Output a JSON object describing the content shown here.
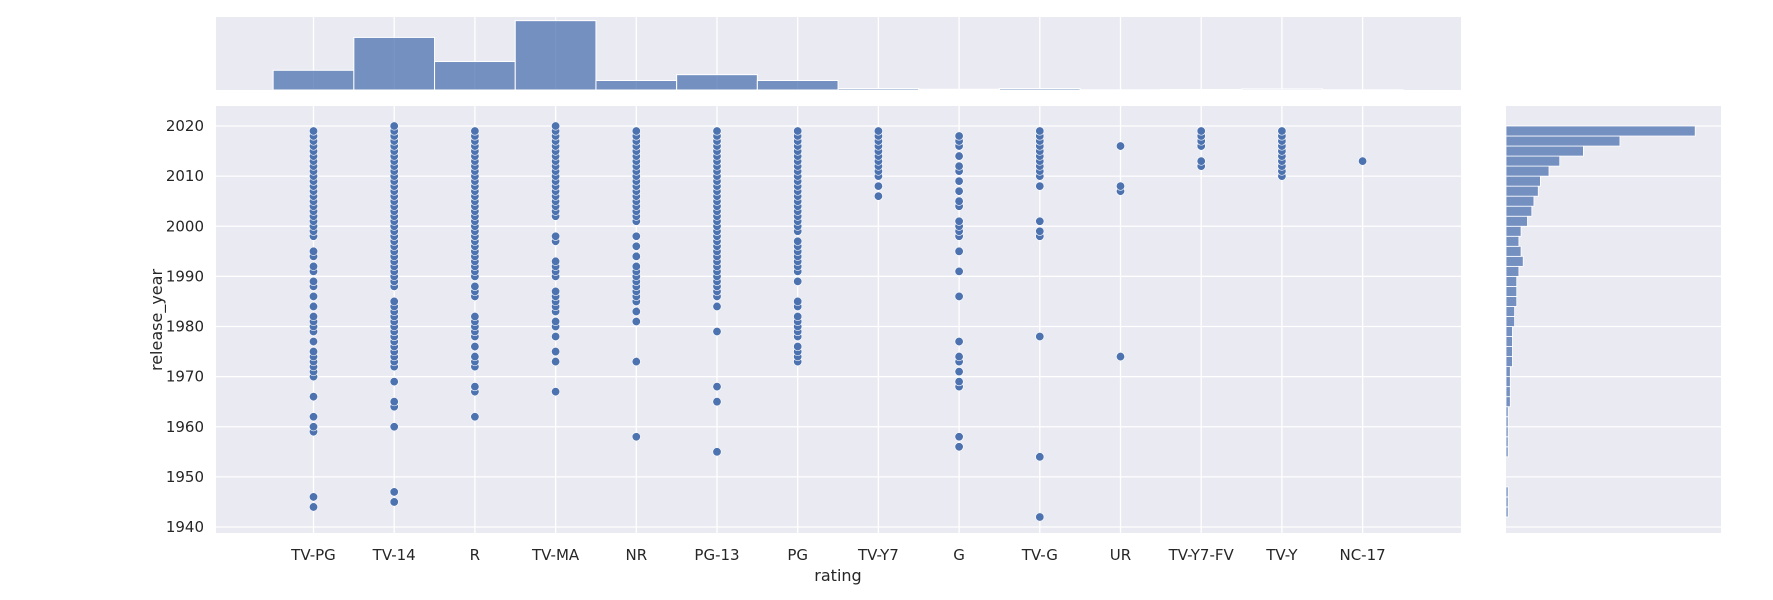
{
  "chart_data": {
    "type": "scatter",
    "kind": "jointplot",
    "xlabel": "rating",
    "ylabel": "release_year",
    "categories": [
      "TV-PG",
      "TV-14",
      "R",
      "TV-MA",
      "NR",
      "PG-13",
      "PG",
      "TV-Y7",
      "G",
      "TV-G",
      "UR",
      "TV-Y7-FV",
      "TV-Y",
      "NC-17"
    ],
    "ylim": [
      1938,
      2022
    ],
    "yticks": [
      1940,
      1950,
      1960,
      1970,
      1980,
      1990,
      2000,
      2010,
      2020
    ],
    "grid": true,
    "style": "seaborn darkgrid",
    "colors": {
      "marker": "#4c72b0",
      "background": "#eaeaf2",
      "grid": "#ffffff",
      "hist": "#4c72b0"
    },
    "points": {
      "TV-PG": [
        1944,
        1946,
        1959,
        1960,
        1962,
        1966,
        1970,
        1971,
        1972,
        1973,
        1974,
        1975,
        1977,
        1979,
        1980,
        1981,
        1982,
        1984,
        1986,
        1988,
        1989,
        1991,
        1992,
        1994,
        1995,
        1998,
        1999,
        2000,
        2001,
        2002,
        2003,
        2004,
        2005,
        2006,
        2007,
        2008,
        2009,
        2010,
        2011,
        2012,
        2013,
        2014,
        2015,
        2016,
        2017,
        2018,
        2019
      ],
      "TV-14": [
        1945,
        1947,
        1960,
        1964,
        1965,
        1969,
        1972,
        1973,
        1974,
        1975,
        1976,
        1977,
        1978,
        1979,
        1980,
        1981,
        1982,
        1983,
        1984,
        1985,
        1988,
        1989,
        1990,
        1991,
        1992,
        1993,
        1994,
        1995,
        1996,
        1997,
        1998,
        1999,
        2000,
        2001,
        2002,
        2003,
        2004,
        2005,
        2006,
        2007,
        2008,
        2009,
        2010,
        2011,
        2012,
        2013,
        2014,
        2015,
        2016,
        2017,
        2018,
        2019,
        2020
      ],
      "R": [
        1962,
        1967,
        1968,
        1972,
        1973,
        1974,
        1976,
        1978,
        1979,
        1980,
        1981,
        1982,
        1986,
        1987,
        1988,
        1990,
        1991,
        1992,
        1993,
        1994,
        1995,
        1996,
        1997,
        1998,
        1999,
        2000,
        2001,
        2002,
        2003,
        2004,
        2005,
        2006,
        2007,
        2008,
        2009,
        2010,
        2011,
        2012,
        2013,
        2014,
        2015,
        2016,
        2017,
        2018,
        2019
      ],
      "TV-MA": [
        1967,
        1973,
        1975,
        1978,
        1980,
        1981,
        1983,
        1984,
        1985,
        1986,
        1987,
        1990,
        1991,
        1992,
        1993,
        1997,
        1998,
        2002,
        2003,
        2004,
        2005,
        2006,
        2007,
        2008,
        2009,
        2010,
        2011,
        2012,
        2013,
        2014,
        2015,
        2016,
        2017,
        2018,
        2019,
        2020
      ],
      "NR": [
        1958,
        1973,
        1981,
        1983,
        1985,
        1986,
        1987,
        1988,
        1989,
        1990,
        1991,
        1992,
        1994,
        1996,
        1998,
        2001,
        2002,
        2003,
        2004,
        2005,
        2006,
        2007,
        2008,
        2009,
        2010,
        2011,
        2012,
        2013,
        2014,
        2015,
        2016,
        2017,
        2018,
        2019
      ],
      "PG-13": [
        1955,
        1965,
        1968,
        1979,
        1984,
        1986,
        1987,
        1988,
        1989,
        1990,
        1991,
        1992,
        1993,
        1994,
        1995,
        1996,
        1997,
        1998,
        1999,
        2000,
        2001,
        2002,
        2003,
        2004,
        2005,
        2006,
        2007,
        2008,
        2009,
        2010,
        2011,
        2012,
        2013,
        2014,
        2015,
        2016,
        2017,
        2018,
        2019
      ],
      "PG": [
        1973,
        1974,
        1975,
        1976,
        1978,
        1979,
        1980,
        1981,
        1982,
        1984,
        1985,
        1989,
        1991,
        1992,
        1993,
        1994,
        1995,
        1996,
        1997,
        1999,
        2000,
        2001,
        2002,
        2003,
        2004,
        2005,
        2006,
        2007,
        2008,
        2009,
        2010,
        2011,
        2012,
        2013,
        2014,
        2015,
        2016,
        2017,
        2018,
        2019
      ],
      "TV-Y7": [
        2006,
        2008,
        2010,
        2011,
        2012,
        2013,
        2014,
        2015,
        2016,
        2017,
        2018,
        2019
      ],
      "G": [
        1956,
        1958,
        1968,
        1969,
        1971,
        1973,
        1974,
        1977,
        1986,
        1991,
        1995,
        1998,
        1999,
        2000,
        2001,
        2004,
        2005,
        2007,
        2009,
        2011,
        2012,
        2014,
        2016,
        2017,
        2018
      ],
      "TV-G": [
        1942,
        1954,
        1978,
        1998,
        1999,
        2001,
        2008,
        2010,
        2011,
        2012,
        2013,
        2014,
        2015,
        2016,
        2017,
        2018,
        2019
      ],
      "UR": [
        1974,
        2007,
        2008,
        2016
      ],
      "TV-Y7-FV": [
        2012,
        2013,
        2016,
        2017,
        2018,
        2019
      ],
      "TV-Y": [
        2010,
        2011,
        2012,
        2013,
        2014,
        2015,
        2016,
        2017,
        2018,
        2019
      ],
      "NC-17": [
        2013
      ]
    },
    "x_histogram": {
      "counts": [
        0.27,
        0.72,
        0.39,
        0.95,
        0.13,
        0.21,
        0.13,
        0.02,
        0.01,
        0.02,
        0.003,
        0.007,
        0.015,
        0.003
      ]
    },
    "y_histogram": {
      "bins_start": [
        1942,
        1944,
        1946,
        1948,
        1950,
        1952,
        1954,
        1956,
        1958,
        1960,
        1962,
        1964,
        1966,
        1968,
        1970,
        1972,
        1974,
        1976,
        1978,
        1980,
        1982,
        1984,
        1986,
        1988,
        1990,
        1992,
        1994,
        1996,
        1998,
        2000,
        2002,
        2004,
        2006,
        2008,
        2010,
        2012,
        2014,
        2016,
        2018
      ],
      "counts": [
        0.01,
        0.01,
        0.01,
        0,
        0,
        0,
        0.01,
        0.01,
        0.01,
        0.01,
        0.01,
        0.02,
        0.02,
        0.02,
        0.02,
        0.03,
        0.03,
        0.03,
        0.03,
        0.04,
        0.04,
        0.05,
        0.05,
        0.05,
        0.06,
        0.08,
        0.07,
        0.06,
        0.07,
        0.1,
        0.12,
        0.13,
        0.15,
        0.16,
        0.2,
        0.25,
        0.36,
        0.53,
        0.88
      ]
    }
  }
}
